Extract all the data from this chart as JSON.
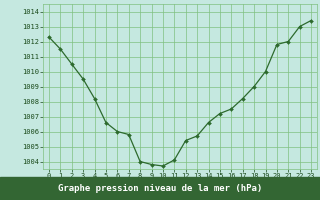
{
  "x": [
    0,
    1,
    2,
    3,
    4,
    5,
    6,
    7,
    8,
    9,
    10,
    11,
    12,
    13,
    14,
    15,
    16,
    17,
    18,
    19,
    20,
    21,
    22,
    23
  ],
  "y": [
    1012.3,
    1011.5,
    1010.5,
    1009.5,
    1008.2,
    1006.6,
    1006.0,
    1005.8,
    1004.0,
    1003.8,
    1003.7,
    1004.1,
    1005.4,
    1005.7,
    1006.6,
    1007.2,
    1007.5,
    1008.2,
    1009.0,
    1010.0,
    1011.8,
    1012.0,
    1013.0,
    1013.4
  ],
  "line_color": "#2d6a2d",
  "marker": "D",
  "marker_size": 2.0,
  "line_width": 0.9,
  "bg_color": "#c5e8e0",
  "grid_color": "#80c080",
  "xlabel": "Graphe pression niveau de la mer (hPa)",
  "xlabel_fontsize": 6.5,
  "ylim": [
    1003.5,
    1014.5
  ],
  "yticks": [
    1004,
    1005,
    1006,
    1007,
    1008,
    1009,
    1010,
    1011,
    1012,
    1013,
    1014
  ],
  "xtick_labels": [
    "0",
    "1",
    "2",
    "3",
    "4",
    "5",
    "6",
    "7",
    "8",
    "9",
    "10",
    "11",
    "12",
    "13",
    "14",
    "15",
    "16",
    "17",
    "18",
    "19",
    "20",
    "21",
    "22",
    "23"
  ],
  "tick_color": "#1a4a1a",
  "tick_fontsize": 5.0,
  "bottom_label_bg": "#336633",
  "label_text_color": "#ffffff"
}
